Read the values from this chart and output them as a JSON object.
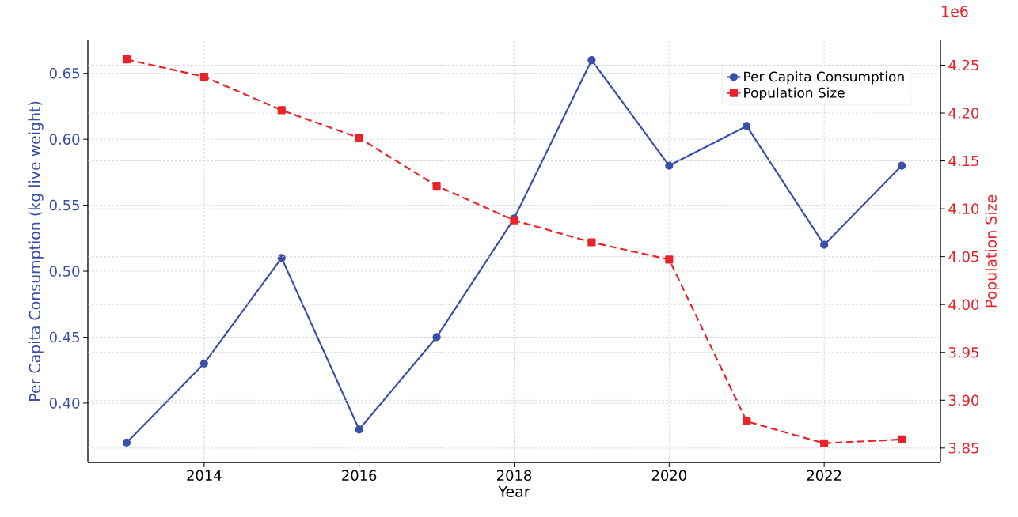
{
  "chart_data": {
    "type": "line",
    "xlabel": "Year",
    "ylabel": "Per Capita Consumption (kg live weight)",
    "y2label": "Population Size",
    "annotations": [
      "1e6"
    ],
    "x": [
      2013,
      2014,
      2015,
      2016,
      2017,
      2018,
      2019,
      2020,
      2021,
      2022,
      2023
    ],
    "xlim": [
      2012.5,
      2023.5
    ],
    "xticks": [
      2014,
      2016,
      2018,
      2020,
      2022
    ],
    "ylim": [
      0.355,
      0.675
    ],
    "yticks": [
      {
        "value": 0.4,
        "label": "0.40"
      },
      {
        "value": 0.45,
        "label": "0.45"
      },
      {
        "value": 0.5,
        "label": "0.50"
      },
      {
        "value": 0.55,
        "label": "0.55"
      },
      {
        "value": 0.6,
        "label": "0.60"
      },
      {
        "value": 0.65,
        "label": "0.65"
      }
    ],
    "y2lim": [
      3.835,
      4.276
    ],
    "y2ticks": [
      3.85,
      {
        "value": 3.9,
        "label": "3.90"
      },
      3.95,
      {
        "value": 4.0,
        "label": "4.00"
      },
      4.05,
      {
        "value": 4.1,
        "label": "4.10"
      },
      4.15,
      {
        "value": 4.2,
        "label": "4.20"
      },
      4.25
    ],
    "grid": true,
    "legend": "top right",
    "series": [
      {
        "name": "Per Capita Consumption",
        "color": "#3a50a8",
        "marker": "circle",
        "line_style": "solid",
        "axis": "y",
        "values": [
          0.37,
          0.43,
          0.51,
          0.38,
          0.45,
          0.54,
          0.66,
          0.58,
          0.61,
          0.52,
          0.58
        ]
      },
      {
        "name": "Population Size",
        "color": "#e8232a",
        "marker": "square",
        "line_style": "dashed",
        "axis": "y2",
        "values": [
          4.256,
          4.238,
          4.203,
          4.174,
          4.124,
          4.088,
          4.065,
          4.047,
          3.878,
          3.855,
          3.859
        ]
      }
    ]
  }
}
